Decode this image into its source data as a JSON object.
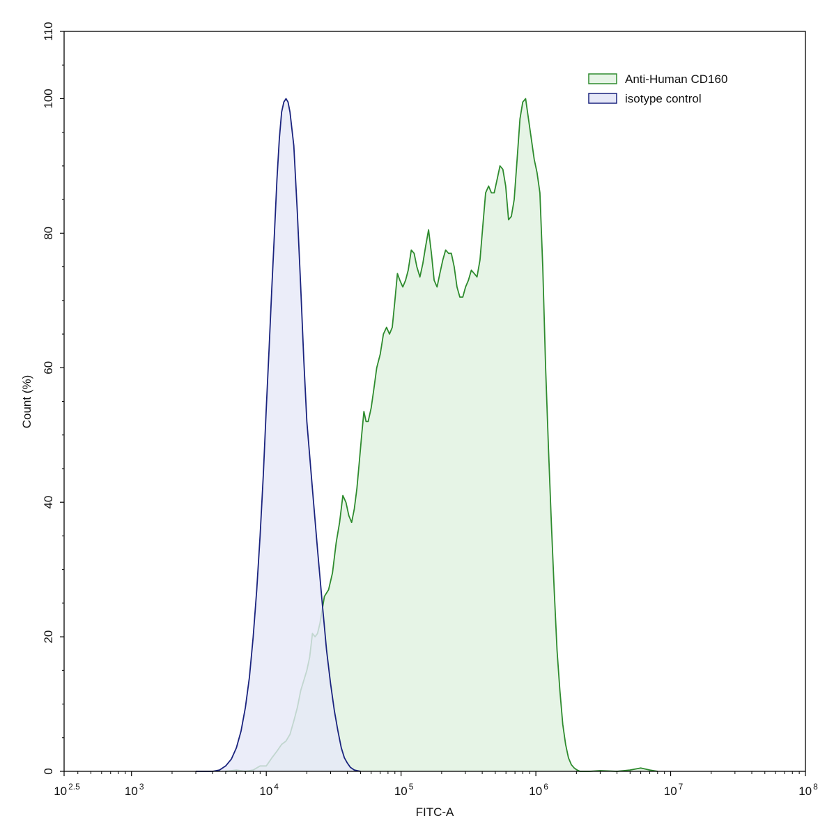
{
  "chart_data": {
    "type": "area",
    "title": "",
    "xlabel": "FITC-A",
    "ylabel": "Count  (%)",
    "x_scale": "log10",
    "xlim": [
      316.23,
      100000000
    ],
    "ylim": [
      0,
      110
    ],
    "x_ticks": [
      {
        "value": 316.23,
        "base": "10",
        "exp": "2.5"
      },
      {
        "value": 1000,
        "base": "10",
        "exp": "3"
      },
      {
        "value": 10000,
        "base": "10",
        "exp": "4"
      },
      {
        "value": 100000,
        "base": "10",
        "exp": "5"
      },
      {
        "value": 1000000,
        "base": "10",
        "exp": "6"
      },
      {
        "value": 10000000,
        "base": "10",
        "exp": "7"
      },
      {
        "value": 100000000,
        "base": "10",
        "exp": "8"
      }
    ],
    "y_ticks": [
      {
        "value": 0,
        "label": "0"
      },
      {
        "value": 20,
        "label": "20"
      },
      {
        "value": 40,
        "label": "40"
      },
      {
        "value": 60,
        "label": "60"
      },
      {
        "value": 80,
        "label": "80"
      },
      {
        "value": 100,
        "label": "100"
      },
      {
        "value": 110,
        "label": "110"
      }
    ],
    "grid": false,
    "legend_position": "top-right",
    "series": [
      {
        "name": "Anti-Human CD160",
        "color": "#2e8b2e",
        "fill": "#e6f4e6",
        "points": [
          [
            5000,
            0
          ],
          [
            6000,
            0.2
          ],
          [
            7000,
            0
          ],
          [
            8000,
            0.2
          ],
          [
            9000,
            0.8
          ],
          [
            10000,
            0.8
          ],
          [
            11000,
            2
          ],
          [
            12000,
            3
          ],
          [
            13000,
            4
          ],
          [
            14000,
            4.5
          ],
          [
            15000,
            5.5
          ],
          [
            16000,
            7.5
          ],
          [
            17000,
            9.5
          ],
          [
            18000,
            12
          ],
          [
            20000,
            15
          ],
          [
            21000,
            17
          ],
          [
            22000,
            20.5
          ],
          [
            23000,
            20
          ],
          [
            24000,
            20.5
          ],
          [
            25000,
            22
          ],
          [
            27000,
            26
          ],
          [
            29000,
            27
          ],
          [
            31000,
            29.5
          ],
          [
            33000,
            34
          ],
          [
            35000,
            37
          ],
          [
            37000,
            41
          ],
          [
            39000,
            40
          ],
          [
            41000,
            38
          ],
          [
            43000,
            37
          ],
          [
            45000,
            39
          ],
          [
            47000,
            42
          ],
          [
            49000,
            46
          ],
          [
            51000,
            50
          ],
          [
            53000,
            53.5
          ],
          [
            55000,
            52
          ],
          [
            57000,
            52
          ],
          [
            60000,
            54
          ],
          [
            63000,
            57
          ],
          [
            66000,
            60
          ],
          [
            70000,
            62
          ],
          [
            74000,
            65
          ],
          [
            78000,
            66
          ],
          [
            82000,
            65
          ],
          [
            86000,
            66
          ],
          [
            90000,
            70
          ],
          [
            94000,
            74
          ],
          [
            98000,
            73
          ],
          [
            103000,
            72
          ],
          [
            108000,
            73
          ],
          [
            113000,
            74.5
          ],
          [
            119000,
            77.5
          ],
          [
            125000,
            77
          ],
          [
            131000,
            75
          ],
          [
            138000,
            73.5
          ],
          [
            145000,
            75.5
          ],
          [
            152000,
            78
          ],
          [
            160000,
            80.5
          ],
          [
            168000,
            77
          ],
          [
            176000,
            73
          ],
          [
            185000,
            72
          ],
          [
            194000,
            74
          ],
          [
            204000,
            76
          ],
          [
            214000,
            77.5
          ],
          [
            225000,
            77
          ],
          [
            236000,
            77
          ],
          [
            248000,
            75
          ],
          [
            260000,
            72
          ],
          [
            273000,
            70.5
          ],
          [
            287000,
            70.5
          ],
          [
            301000,
            72
          ],
          [
            316000,
            73
          ],
          [
            332000,
            74.5
          ],
          [
            349000,
            74
          ],
          [
            366000,
            73.5
          ],
          [
            385000,
            76
          ],
          [
            404000,
            81
          ],
          [
            424000,
            86
          ],
          [
            446000,
            87
          ],
          [
            468000,
            86
          ],
          [
            491000,
            86
          ],
          [
            516000,
            88
          ],
          [
            542000,
            90
          ],
          [
            569000,
            89.5
          ],
          [
            597000,
            87
          ],
          [
            627000,
            82
          ],
          [
            658000,
            82.5
          ],
          [
            691000,
            85
          ],
          [
            726000,
            91
          ],
          [
            762000,
            97
          ],
          [
            800000,
            99.5
          ],
          [
            840000,
            100
          ],
          [
            882000,
            97
          ],
          [
            926000,
            94
          ],
          [
            972000,
            91
          ],
          [
            1020000,
            89
          ],
          [
            1071000,
            86
          ],
          [
            1125000,
            75
          ],
          [
            1181000,
            60
          ],
          [
            1240000,
            48
          ],
          [
            1302000,
            37
          ],
          [
            1367000,
            27
          ],
          [
            1436000,
            18
          ],
          [
            1508000,
            12
          ],
          [
            1583000,
            7
          ],
          [
            1662000,
            4
          ],
          [
            1745000,
            2
          ],
          [
            1832000,
            1
          ],
          [
            1924000,
            0.5
          ],
          [
            2020000,
            0.2
          ],
          [
            2121000,
            0
          ],
          [
            2500000,
            0
          ],
          [
            3000000,
            0.1
          ],
          [
            4000000,
            0
          ],
          [
            5000000,
            0.2
          ],
          [
            6000000,
            0.5
          ],
          [
            7000000,
            0.2
          ],
          [
            8000000,
            0
          ]
        ]
      },
      {
        "name": "isotype control",
        "color": "#1a237e",
        "fill": "#e6e8f8",
        "points": [
          [
            3000,
            0
          ],
          [
            4000,
            0
          ],
          [
            4500,
            0.2
          ],
          [
            5000,
            0.8
          ],
          [
            5500,
            1.8
          ],
          [
            6000,
            3.5
          ],
          [
            6500,
            6
          ],
          [
            7000,
            9.5
          ],
          [
            7500,
            14
          ],
          [
            8000,
            20
          ],
          [
            8500,
            27
          ],
          [
            9000,
            35
          ],
          [
            9500,
            44
          ],
          [
            10000,
            54
          ],
          [
            10500,
            63
          ],
          [
            11000,
            72
          ],
          [
            11500,
            80
          ],
          [
            12000,
            88
          ],
          [
            12500,
            94
          ],
          [
            13000,
            98
          ],
          [
            13500,
            99.5
          ],
          [
            14000,
            100
          ],
          [
            14500,
            99.5
          ],
          [
            15000,
            98
          ],
          [
            16000,
            93
          ],
          [
            17000,
            83
          ],
          [
            18000,
            72
          ],
          [
            19000,
            61
          ],
          [
            20000,
            52
          ],
          [
            22000,
            42
          ],
          [
            24000,
            33
          ],
          [
            26000,
            25
          ],
          [
            28000,
            18
          ],
          [
            30000,
            13
          ],
          [
            32000,
            9
          ],
          [
            34000,
            6
          ],
          [
            36000,
            3.5
          ],
          [
            38000,
            2
          ],
          [
            40000,
            1.2
          ],
          [
            42000,
            0.6
          ],
          [
            45000,
            0.2
          ],
          [
            50000,
            0
          ]
        ]
      }
    ]
  }
}
